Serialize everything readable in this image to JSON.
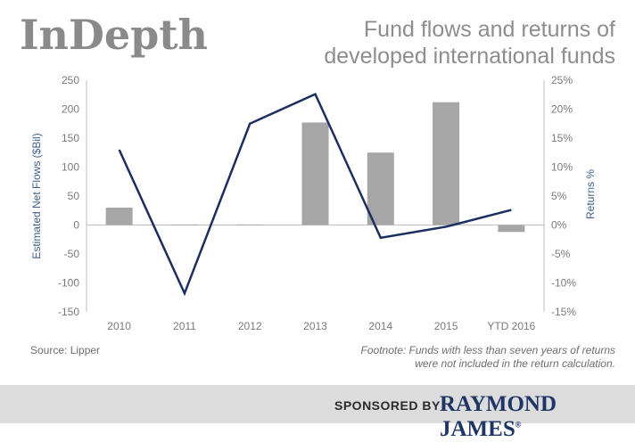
{
  "header": {
    "brand": "InDepth",
    "title_line1": "Fund flows and returns of",
    "title_line2": "developed international funds"
  },
  "source": "Source: Lipper",
  "footnote_line1": "Footnote: Funds with less than seven years of returns",
  "footnote_line2": "were not included in the return calculation.",
  "sponsor": {
    "label": "SPONSORED BY",
    "logo": "RAYMOND JAMES",
    "reg": "®"
  },
  "colors": {
    "bar": "#a6a6a6",
    "line": "#1b2e60",
    "axis_text": "#7a7a7a",
    "axis_label": "#3f5f88"
  },
  "chart_data": {
    "type": "bar+line",
    "categories": [
      "2010",
      "2011",
      "2012",
      "2013",
      "2014",
      "2015",
      "YTD 2016"
    ],
    "series": [
      {
        "type": "bar",
        "axis": "left",
        "values": [
          30,
          1,
          1,
          177,
          125,
          212,
          -12
        ]
      },
      {
        "type": "line",
        "axis": "right",
        "values": [
          13.0,
          -11.8,
          17.5,
          22.6,
          -2.2,
          -0.3,
          2.6
        ]
      }
    ],
    "ylabel": "Estimated Net Flows ($Bil)",
    "ylabel_right": "Returns %",
    "ylim": [
      -150,
      250
    ],
    "ylim_right": [
      -15,
      25
    ],
    "yticks": [
      "250",
      "200",
      "150",
      "100",
      "50",
      "0",
      "-50",
      "-100",
      "-150"
    ],
    "yticks_right": [
      "25%",
      "20%",
      "15%",
      "10%",
      "5%",
      "0%",
      "-5%",
      "-10%",
      "-15%"
    ],
    "grid": false
  }
}
